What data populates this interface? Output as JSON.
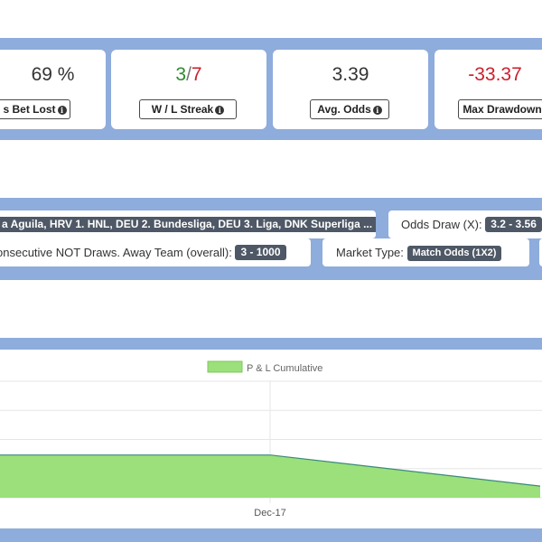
{
  "stats": [
    {
      "value": "69 %",
      "label": "s Bet Lost",
      "value_color": "#333333"
    },
    {
      "value_a": "3",
      "value_sep": "/",
      "value_b": "7",
      "label": "W / L Streak"
    },
    {
      "value": "3.39",
      "label": "Avg. Odds",
      "value_color": "#333333"
    },
    {
      "value": "-33.37",
      "label": "Max Drawdown",
      "value_color": "#cc1f2d"
    }
  ],
  "info_glyph": "i",
  "filters": [
    {
      "prefix": "",
      "tag": "a Aguila, HRV 1. HNL, DEU 2. Bundesliga, DEU 3. Liga, DNK Superliga ..."
    },
    {
      "prefix": "Odds Draw (X):",
      "tag": "3.2 - 3.56"
    },
    {
      "prefix": "onsecutive NOT Draws. Away Team (overall):",
      "tag": "3 - 1000"
    },
    {
      "prefix": "Market Type:",
      "tag": "Match Odds (1X2)"
    }
  ],
  "chart_data": {
    "type": "area",
    "series": [
      {
        "name": "P & L Cumulative",
        "color": "#9be07a",
        "stroke": "#3a8a7a",
        "points": [
          [
            0,
            22
          ],
          [
            0.5,
            22
          ],
          [
            1,
            6
          ]
        ]
      }
    ],
    "x_tick_labels": [
      "Dec-17"
    ],
    "x_range": [
      0,
      1
    ],
    "y_range": [
      0,
      60
    ],
    "grid": true,
    "legend_position": "top-center"
  }
}
